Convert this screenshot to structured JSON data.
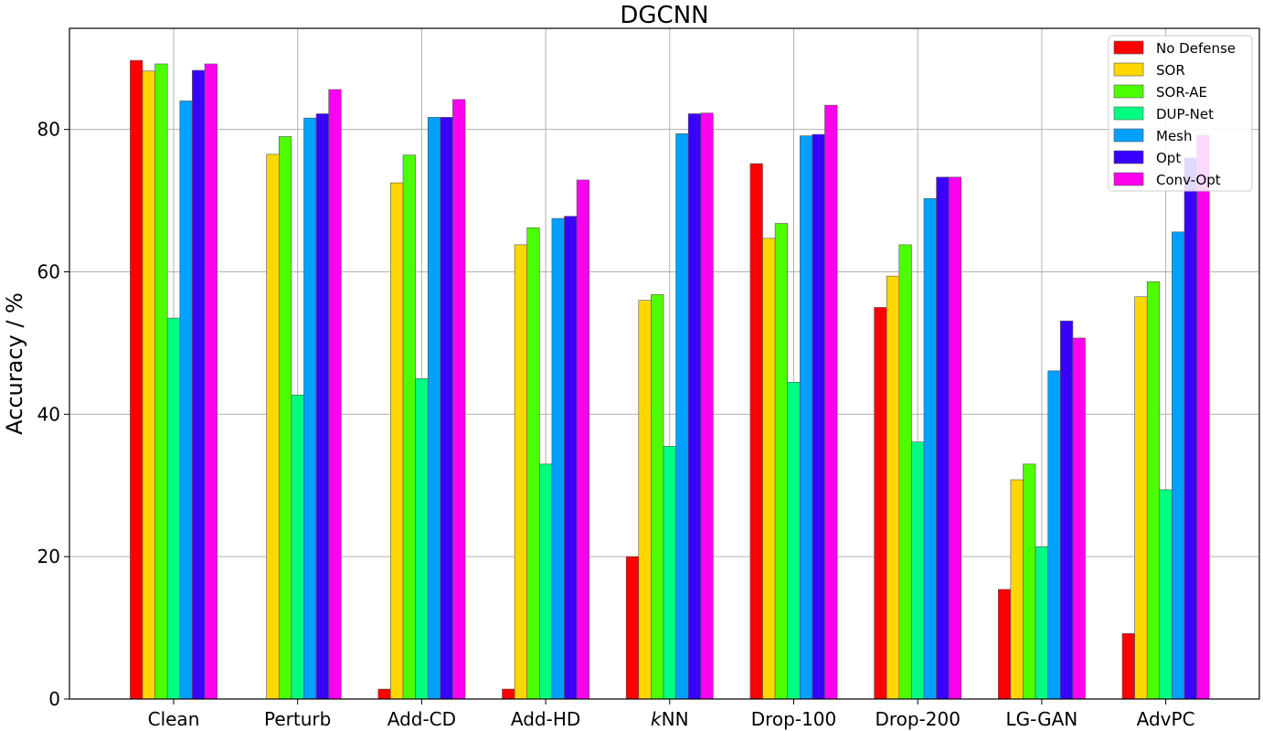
{
  "chart_data": {
    "type": "bar",
    "title": "DGCNN",
    "xlabel": "",
    "ylabel": "Accuracy / %",
    "ylim": [
      0,
      94.2
    ],
    "yticks": [
      0,
      20,
      40,
      60,
      80
    ],
    "grid": true,
    "legend_position": "top-right",
    "categories": [
      "Clean",
      "Perturb",
      "Add-CD",
      "Add-HD",
      "kNN",
      "Drop-100",
      "Drop-200",
      "LG-GAN",
      "AdvPC"
    ],
    "series": [
      {
        "name": "No Defense",
        "color": "#ff0000",
        "values": [
          89.7,
          0.0,
          1.4,
          1.4,
          20.0,
          75.2,
          55.0,
          15.4,
          9.2
        ]
      },
      {
        "name": "SOR",
        "color": "#ffd700",
        "values": [
          88.2,
          76.5,
          72.5,
          63.8,
          56.0,
          64.7,
          59.4,
          30.8,
          56.5
        ]
      },
      {
        "name": "SOR-AE",
        "color": "#4cff00",
        "values": [
          89.2,
          79.0,
          76.4,
          66.2,
          56.8,
          66.8,
          63.8,
          33.0,
          58.6
        ]
      },
      {
        "name": "DUP-Net",
        "color": "#00ff80",
        "values": [
          53.5,
          42.7,
          45.0,
          33.0,
          35.5,
          44.5,
          36.1,
          21.4,
          29.4
        ]
      },
      {
        "name": "Mesh",
        "color": "#00a0ff",
        "values": [
          84.0,
          81.6,
          81.7,
          67.5,
          79.4,
          79.1,
          70.3,
          46.1,
          65.6
        ]
      },
      {
        "name": "Opt",
        "color": "#3a00ff",
        "values": [
          88.3,
          82.2,
          81.7,
          67.8,
          82.2,
          79.3,
          73.3,
          53.1,
          76.0
        ]
      },
      {
        "name": "Conv-Opt",
        "color": "#ff00ee",
        "values": [
          89.2,
          85.6,
          84.2,
          72.9,
          82.3,
          83.4,
          73.3,
          50.7,
          79.2
        ]
      }
    ]
  }
}
